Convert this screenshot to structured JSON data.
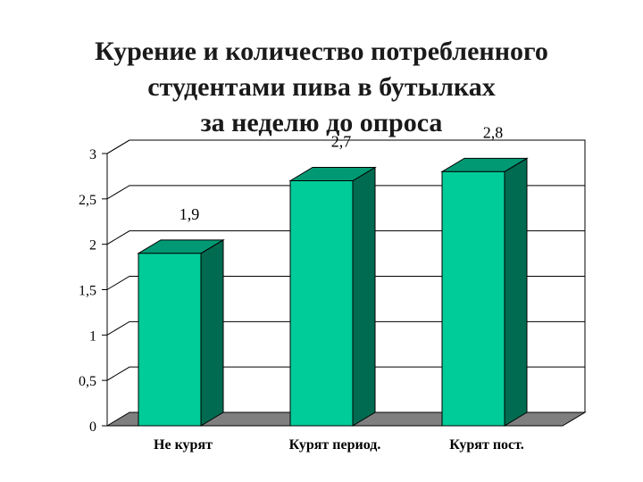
{
  "chart_data": {
    "type": "bar",
    "title_lines": [
      "Курение и количество потребленного",
      "студентами пива в бутылках",
      "за неделю до опроса"
    ],
    "categories": [
      "Не курят",
      "Курят период.",
      "Курят пост."
    ],
    "values": [
      1.9,
      2.7,
      2.8
    ],
    "data_labels": [
      "1,9",
      "2,7",
      "2,8"
    ],
    "yticks": [
      "0",
      "0,5",
      "1",
      "1,5",
      "2",
      "2,5",
      "3"
    ],
    "ylim": [
      0,
      3
    ],
    "xlabel": "",
    "ylabel": "",
    "grid": true,
    "legend": "none",
    "colors": {
      "bar_front": "#00CC99",
      "bar_side": "#006B50",
      "bar_top": "#009973",
      "floor": "#7F7F7F",
      "grid": "#000000"
    }
  }
}
